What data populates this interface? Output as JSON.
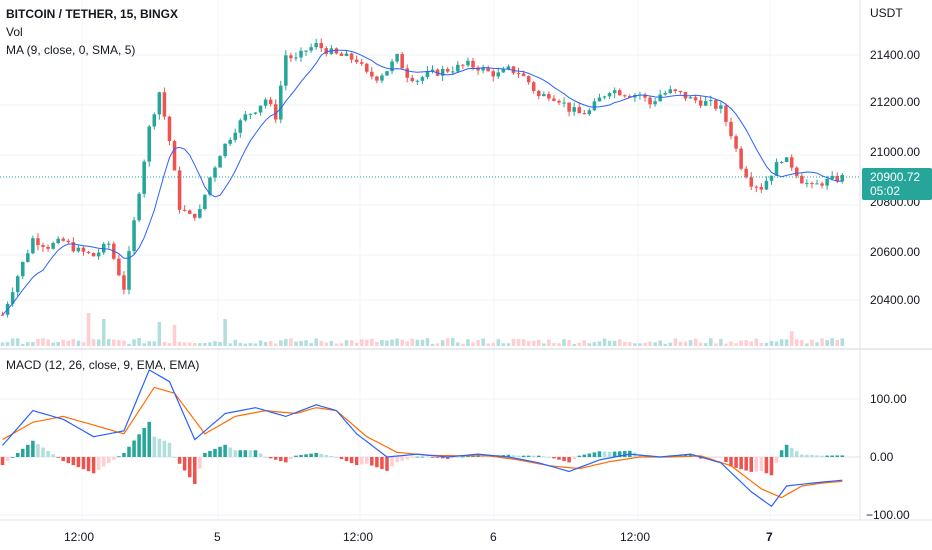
{
  "legend": {
    "symbol": "BITCOIN / TETHER, 15, BINGX",
    "volume": "Vol",
    "ma": "MA (9, close, 0, SMA, 5)",
    "macd": "MACD (12, 26, close, 9, EMA, EMA)"
  },
  "price_axis": {
    "unit": "USDT",
    "ticks": [
      "21400.00",
      "21200.00",
      "21000.00",
      "20800.00",
      "20600.00",
      "20400.00"
    ],
    "last_price": "20900.72",
    "countdown": "05:02"
  },
  "macd_axis": {
    "ticks": [
      "100.00",
      "0.00",
      "−100.00"
    ]
  },
  "time_axis": {
    "ticks": [
      "12:00",
      "5",
      "12:00",
      "6",
      "12:00",
      "7"
    ]
  },
  "colors": {
    "up": "#26a69a",
    "down": "#ef5350",
    "ma_line": "#2962ff",
    "macd_line": "#2962ff",
    "signal_line": "#ff6d00",
    "hist_up": "#26a69a",
    "hist_down": "#ef5350",
    "hist_up_light": "#b2dfdb",
    "hist_down_light": "#ffcdd2",
    "last_price_tag": "#26a69a"
  },
  "chart_data": {
    "type": "candlestick",
    "price_range": [
      20300,
      21520
    ],
    "macd_range": [
      -110,
      160
    ],
    "price_path": [
      [
        0,
        20340
      ],
      [
        3,
        20500
      ],
      [
        6,
        20650
      ],
      [
        9,
        20620
      ],
      [
        12,
        20640
      ],
      [
        15,
        20600
      ],
      [
        18,
        20580
      ],
      [
        21,
        20630
      ],
      [
        24,
        20450
      ],
      [
        27,
        20850
      ],
      [
        29,
        21100
      ],
      [
        31,
        21250
      ],
      [
        33,
        21050
      ],
      [
        35,
        20780
      ],
      [
        37,
        20740
      ],
      [
        39,
        20760
      ],
      [
        41,
        20900
      ],
      [
        43,
        21000
      ],
      [
        46,
        21100
      ],
      [
        48,
        21150
      ],
      [
        50,
        21180
      ],
      [
        52,
        21220
      ],
      [
        54,
        21150
      ],
      [
        56,
        21400
      ],
      [
        58,
        21380
      ],
      [
        60,
        21420
      ],
      [
        62,
        21440
      ],
      [
        64,
        21420
      ],
      [
        66,
        21400
      ],
      [
        68,
        21390
      ],
      [
        70,
        21380
      ],
      [
        72,
        21320
      ],
      [
        74,
        21310
      ],
      [
        76,
        21340
      ],
      [
        78,
        21390
      ],
      [
        80,
        21320
      ],
      [
        82,
        21300
      ],
      [
        84,
        21320
      ],
      [
        86,
        21330
      ],
      [
        88,
        21340
      ],
      [
        90,
        21350
      ],
      [
        92,
        21360
      ],
      [
        94,
        21350
      ],
      [
        96,
        21330
      ],
      [
        98,
        21320
      ],
      [
        100,
        21340
      ],
      [
        102,
        21330
      ],
      [
        104,
        21290
      ],
      [
        106,
        21230
      ],
      [
        108,
        21240
      ],
      [
        110,
        21220
      ],
      [
        112,
        21180
      ],
      [
        114,
        21160
      ],
      [
        116,
        21170
      ],
      [
        118,
        21220
      ],
      [
        120,
        21260
      ],
      [
        122,
        21250
      ],
      [
        124,
        21240
      ],
      [
        126,
        21240
      ],
      [
        128,
        21200
      ],
      [
        130,
        21240
      ],
      [
        132,
        21250
      ],
      [
        134,
        21240
      ],
      [
        136,
        21220
      ],
      [
        138,
        21210
      ],
      [
        140,
        21200
      ],
      [
        142,
        21180
      ],
      [
        144,
        21080
      ],
      [
        146,
        20950
      ],
      [
        148,
        20880
      ],
      [
        150,
        20860
      ],
      [
        152,
        20920
      ],
      [
        154,
        20980
      ],
      [
        156,
        20950
      ],
      [
        158,
        20890
      ],
      [
        160,
        20860
      ],
      [
        162,
        20880
      ],
      [
        164,
        20890
      ],
      [
        166,
        20900
      ]
    ],
    "macd_path": [
      [
        0,
        20
      ],
      [
        6,
        80
      ],
      [
        12,
        65
      ],
      [
        18,
        35
      ],
      [
        24,
        45
      ],
      [
        29,
        150
      ],
      [
        33,
        130
      ],
      [
        38,
        30
      ],
      [
        44,
        75
      ],
      [
        50,
        85
      ],
      [
        56,
        70
      ],
      [
        62,
        90
      ],
      [
        66,
        80
      ],
      [
        70,
        40
      ],
      [
        76,
        0
      ],
      [
        82,
        5
      ],
      [
        88,
        0
      ],
      [
        94,
        5
      ],
      [
        100,
        0
      ],
      [
        106,
        -10
      ],
      [
        112,
        -25
      ],
      [
        118,
        -5
      ],
      [
        124,
        5
      ],
      [
        130,
        0
      ],
      [
        136,
        5
      ],
      [
        142,
        -10
      ],
      [
        148,
        -60
      ],
      [
        152,
        -85
      ],
      [
        155,
        -50
      ],
      [
        160,
        -45
      ],
      [
        166,
        -40
      ]
    ],
    "signal_path": [
      [
        0,
        30
      ],
      [
        6,
        60
      ],
      [
        12,
        70
      ],
      [
        18,
        55
      ],
      [
        24,
        40
      ],
      [
        30,
        120
      ],
      [
        34,
        110
      ],
      [
        40,
        40
      ],
      [
        46,
        70
      ],
      [
        52,
        80
      ],
      [
        58,
        75
      ],
      [
        62,
        85
      ],
      [
        66,
        80
      ],
      [
        72,
        35
      ],
      [
        78,
        8
      ],
      [
        84,
        3
      ],
      [
        90,
        2
      ],
      [
        96,
        2
      ],
      [
        102,
        -5
      ],
      [
        108,
        -15
      ],
      [
        114,
        -20
      ],
      [
        120,
        -8
      ],
      [
        126,
        0
      ],
      [
        132,
        0
      ],
      [
        138,
        2
      ],
      [
        144,
        -15
      ],
      [
        150,
        -55
      ],
      [
        154,
        -70
      ],
      [
        158,
        -50
      ],
      [
        162,
        -45
      ],
      [
        166,
        -42
      ]
    ],
    "volume_spikes": [
      [
        17,
        0.55
      ],
      [
        20,
        0.45
      ],
      [
        31,
        0.4
      ],
      [
        34,
        0.35
      ],
      [
        44,
        0.45
      ],
      [
        156,
        0.25
      ]
    ]
  }
}
